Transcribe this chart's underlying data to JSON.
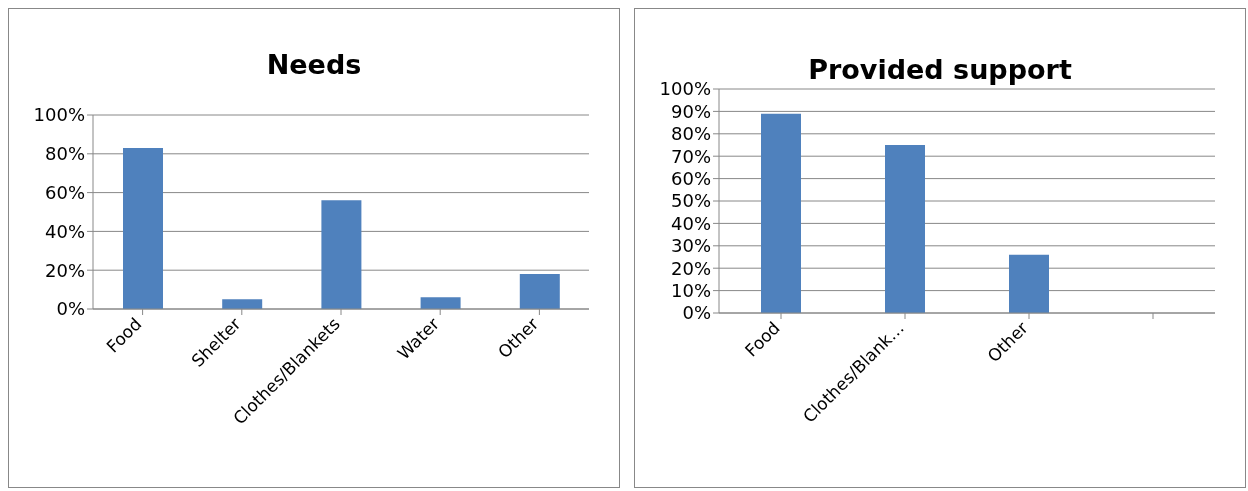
{
  "chart_data": [
    {
      "type": "bar",
      "title": "Needs",
      "categories": [
        "Food",
        "Shelter",
        "Clothes/Blankets",
        "Water",
        "Other"
      ],
      "values": [
        83,
        5,
        56,
        6,
        18
      ],
      "color": "#4f81bd",
      "ylim": [
        0,
        100
      ],
      "yticks": [
        {
          "value": 0,
          "label": "0%"
        },
        {
          "value": 20,
          "label": "20%"
        },
        {
          "value": 40,
          "label": "40%"
        },
        {
          "value": 60,
          "label": "60%"
        },
        {
          "value": 80,
          "label": "80%"
        },
        {
          "value": 100,
          "label": "100%"
        }
      ],
      "grid": "y",
      "legend": false
    },
    {
      "type": "bar",
      "title": "Provided support",
      "categories": [
        "Food",
        "Clothes/Blank…",
        "Other",
        null
      ],
      "values": [
        89,
        75,
        26,
        null
      ],
      "color": "#4f81bd",
      "ylim": [
        0,
        100
      ],
      "yticks": [
        {
          "value": 0,
          "label": "0%"
        },
        {
          "value": 10,
          "label": "10%"
        },
        {
          "value": 20,
          "label": "20%"
        },
        {
          "value": 30,
          "label": "30%"
        },
        {
          "value": 40,
          "label": "40%"
        },
        {
          "value": 50,
          "label": "50%"
        },
        {
          "value": 60,
          "label": "60%"
        },
        {
          "value": 70,
          "label": "70%"
        },
        {
          "value": 80,
          "label": "80%"
        },
        {
          "value": 90,
          "label": "90%"
        },
        {
          "value": 100,
          "label": "100%"
        }
      ],
      "grid": "y",
      "legend": false
    }
  ]
}
